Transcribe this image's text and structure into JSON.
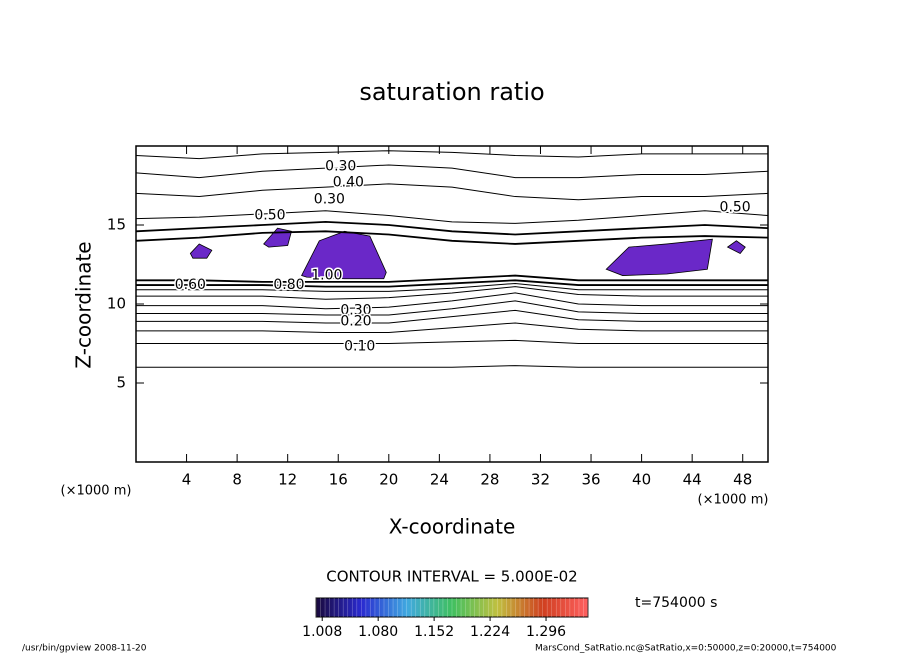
{
  "chart_data": {
    "type": "contour",
    "title": "saturation ratio",
    "xlabel": "X-coordinate",
    "ylabel": "Z-coordinate",
    "x_unit": "(×1000 m)",
    "y_unit": "(×1000 m)",
    "xlim": [
      0,
      50
    ],
    "ylim": [
      0,
      20
    ],
    "xticks": [
      4,
      8,
      12,
      16,
      20,
      24,
      28,
      32,
      36,
      40,
      44,
      48
    ],
    "yticks": [
      5,
      10,
      15
    ],
    "x_grid": [
      0,
      5,
      10,
      15,
      20,
      25,
      30,
      35,
      40,
      45,
      50
    ],
    "contours": [
      {
        "level": 0.05,
        "z": [
          6.0,
          6.0,
          6.0,
          6.0,
          6.0,
          6.0,
          6.1,
          6.0,
          6.0,
          6.0,
          6.0
        ]
      },
      {
        "level": 0.1,
        "z": [
          7.5,
          7.5,
          7.5,
          7.5,
          7.5,
          7.6,
          7.7,
          7.5,
          7.5,
          7.5,
          7.5
        ]
      },
      {
        "level": 0.15,
        "z": [
          8.3,
          8.3,
          8.3,
          8.2,
          8.2,
          8.5,
          8.8,
          8.4,
          8.3,
          8.3,
          8.3
        ]
      },
      {
        "level": 0.2,
        "z": [
          8.9,
          8.9,
          8.9,
          8.8,
          8.8,
          9.2,
          9.6,
          9.0,
          8.9,
          8.9,
          8.9
        ]
      },
      {
        "level": 0.25,
        "z": [
          9.4,
          9.4,
          9.4,
          9.3,
          9.3,
          9.7,
          10.2,
          9.5,
          9.4,
          9.4,
          9.4
        ]
      },
      {
        "level": 0.3,
        "z": [
          9.9,
          9.9,
          9.9,
          9.7,
          9.8,
          10.2,
          10.7,
          10.0,
          9.9,
          9.9,
          9.9
        ]
      },
      {
        "level": 0.4,
        "z": [
          10.5,
          10.5,
          10.5,
          10.3,
          10.4,
          10.7,
          11.1,
          10.6,
          10.5,
          10.5,
          10.5
        ]
      },
      {
        "level": 0.5,
        "z": [
          10.9,
          10.9,
          10.9,
          10.8,
          10.8,
          11.0,
          11.3,
          10.9,
          10.9,
          10.9,
          10.9
        ]
      },
      {
        "level": 0.6,
        "z": [
          11.2,
          11.2,
          11.2,
          11.1,
          11.1,
          11.3,
          11.5,
          11.2,
          11.2,
          11.2,
          11.2
        ]
      },
      {
        "level": 0.8,
        "z": [
          11.5,
          11.5,
          11.4,
          11.4,
          11.4,
          11.6,
          11.8,
          11.5,
          11.5,
          11.5,
          11.5
        ]
      },
      {
        "level": 0.8,
        "z": [
          14.0,
          14.2,
          14.5,
          14.6,
          14.4,
          14.0,
          13.8,
          14.0,
          14.2,
          14.3,
          14.2
        ]
      },
      {
        "level": 0.6,
        "z": [
          14.6,
          14.8,
          15.0,
          15.2,
          15.0,
          14.6,
          14.4,
          14.6,
          14.8,
          15.0,
          14.8
        ]
      },
      {
        "level": 0.5,
        "z": [
          15.4,
          15.5,
          15.7,
          15.9,
          15.6,
          15.2,
          15.1,
          15.3,
          15.6,
          15.9,
          15.6
        ]
      },
      {
        "level": 0.4,
        "z": [
          17.0,
          16.8,
          17.2,
          17.4,
          17.6,
          17.4,
          16.8,
          16.6,
          16.8,
          16.8,
          17.0
        ]
      },
      {
        "level": 0.3,
        "z": [
          18.3,
          18.0,
          18.4,
          18.6,
          18.8,
          18.6,
          18.0,
          18.0,
          18.2,
          18.2,
          18.4
        ]
      },
      {
        "level": 0.2,
        "z": [
          19.4,
          19.2,
          19.5,
          19.6,
          19.7,
          19.6,
          19.4,
          19.3,
          19.5,
          19.5,
          19.5
        ]
      }
    ],
    "contour_labels": [
      {
        "value": 0.3,
        "label": "0.30",
        "x": 16.2,
        "z": 18.7
      },
      {
        "value": 0.4,
        "label": "0.40",
        "x": 16.8,
        "z": 17.7
      },
      {
        "value": 0.3,
        "label": "0.30",
        "x": 15.3,
        "z": 16.6
      },
      {
        "value": 0.5,
        "label": "0.50",
        "x": 47.4,
        "z": 16.1
      },
      {
        "value": 0.5,
        "label": "0.50",
        "x": 10.6,
        "z": 15.6
      },
      {
        "value": 0.6,
        "label": "0.60",
        "x": 4.3,
        "z": 11.2
      },
      {
        "value": 0.8,
        "label": "0.80",
        "x": 12.1,
        "z": 11.2
      },
      {
        "value": 1,
        "label": "1.00",
        "x": 15.1,
        "z": 11.8
      },
      {
        "value": 0.3,
        "label": "0.30",
        "x": 17.4,
        "z": 9.6
      },
      {
        "value": 0.2,
        "label": "0.20",
        "x": 17.4,
        "z": 8.9
      },
      {
        "value": 0.1,
        "label": "0.10",
        "x": 17.7,
        "z": 7.3
      }
    ],
    "regions": [
      {
        "color": "#6a28c8",
        "x": [
          13.1,
          14.5,
          16.5,
          18.5,
          19.8,
          19.6,
          16.5,
          13.5
        ],
        "z": [
          11.8,
          14.0,
          14.6,
          14.3,
          12.0,
          11.6,
          11.6,
          11.7
        ]
      },
      {
        "color": "#6a28c8",
        "x": [
          37.2,
          39.0,
          42.0,
          45.6,
          45.2,
          42.0,
          38.5
        ],
        "z": [
          12.2,
          13.6,
          13.8,
          14.1,
          12.2,
          11.9,
          11.8
        ]
      },
      {
        "color": "#6a28c8",
        "x": [
          4.3,
          5.0,
          6.0,
          5.6,
          4.5
        ],
        "z": [
          13.2,
          13.8,
          13.4,
          12.9,
          12.9
        ]
      },
      {
        "color": "#6a28c8",
        "x": [
          10.1,
          11.2,
          12.3,
          12.0,
          10.5
        ],
        "z": [
          13.8,
          14.8,
          14.6,
          13.7,
          13.6
        ]
      },
      {
        "color": "#6a28c8",
        "x": [
          46.8,
          47.5,
          48.2,
          47.8
        ],
        "z": [
          13.6,
          14.0,
          13.6,
          13.2
        ]
      }
    ],
    "contour_interval_text": "CONTOUR INTERVAL = 5.000E-02",
    "colorbar": {
      "lim": [
        1.0,
        1.35
      ],
      "colors": [
        "#1a0a3c",
        "#2a2ad0",
        "#40a8e0",
        "#40c060",
        "#c0c040",
        "#d04020",
        "#ff6060"
      ],
      "ticks": [
        1.008,
        {
          "value": 1.08,
          "label": "1.080"
        },
        1.152,
        1.224,
        1.296
      ]
    },
    "time_text": "t=754000 s",
    "footer_left": "/usr/bin/gpview  2008-11-20",
    "footer_right": "MarsCond_SatRatio.nc@SatRatio,x=0:50000,z=0:20000,t=754000"
  }
}
